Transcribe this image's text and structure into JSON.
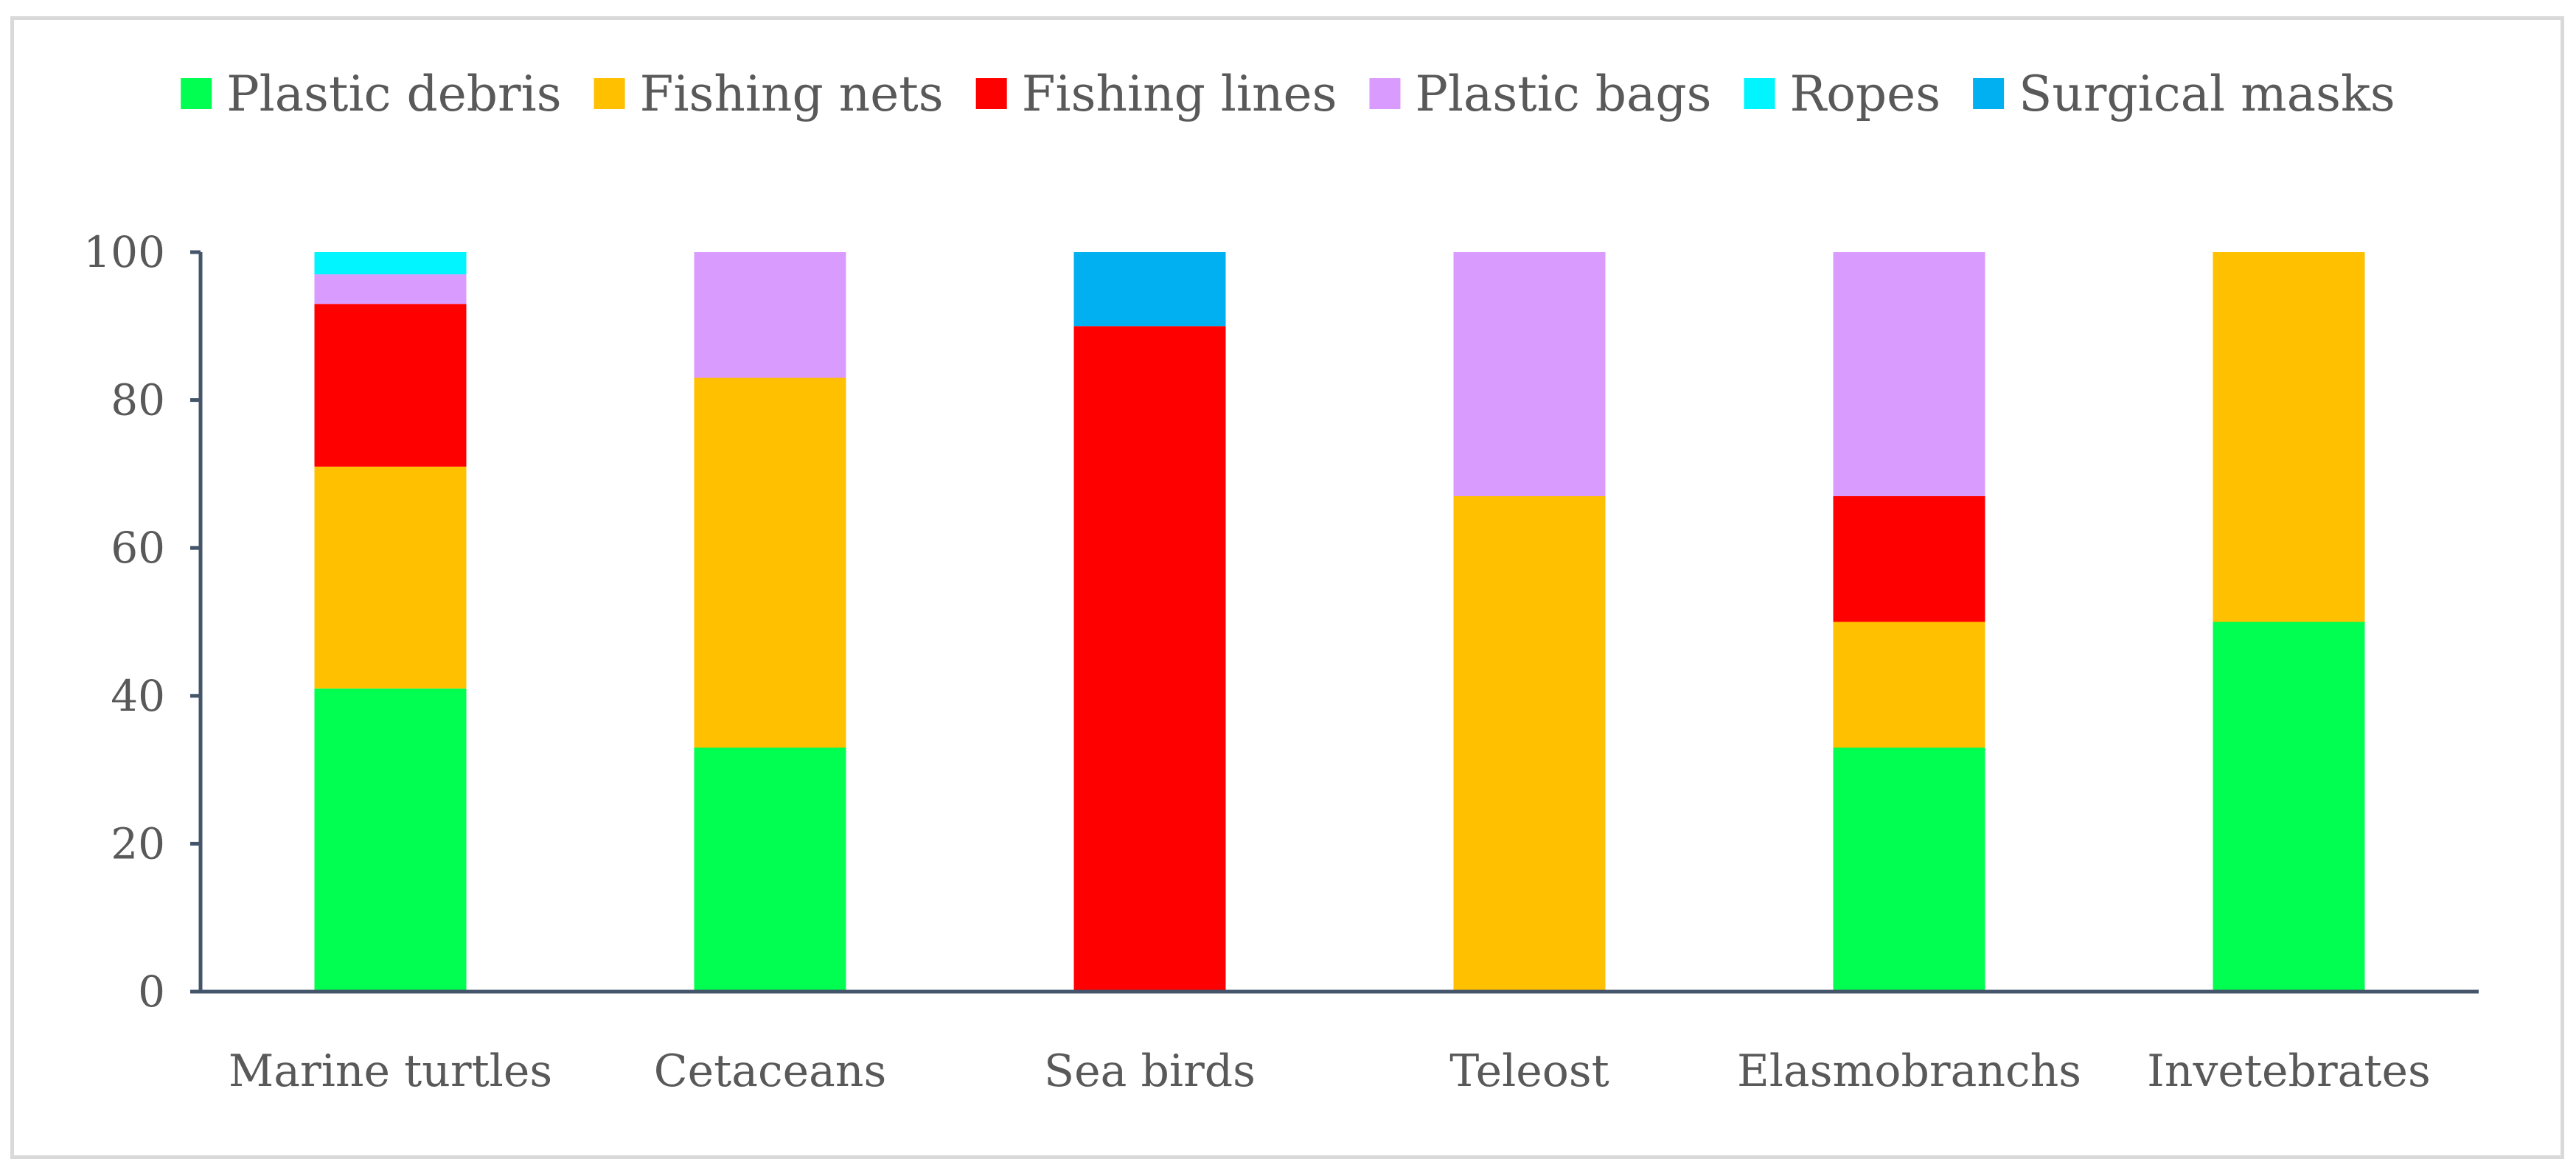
{
  "chart_data": {
    "type": "bar",
    "stacked": true,
    "categories": [
      "Marine turtles",
      "Cetaceans",
      "Sea birds",
      "Teleost",
      "Elasmobranchs",
      "Invetebrates"
    ],
    "series": [
      {
        "name": "Plastic debris",
        "color": "#00FF50",
        "values": [
          41,
          33,
          0,
          0,
          33,
          50
        ]
      },
      {
        "name": "Fishing nets",
        "color": "#FFC000",
        "values": [
          30,
          50,
          0,
          67,
          17,
          50
        ]
      },
      {
        "name": "Fishing lines",
        "color": "#FF0000",
        "values": [
          22,
          0,
          90,
          0,
          17,
          0
        ]
      },
      {
        "name": "Plastic bags",
        "color": "#DA9BFF",
        "values": [
          4,
          17,
          0,
          33,
          33,
          0
        ]
      },
      {
        "name": "Ropes",
        "color": "#00F5FF",
        "values": [
          3,
          0,
          0,
          0,
          0,
          0
        ]
      },
      {
        "name": "Surgical masks",
        "color": "#00B0F0",
        "values": [
          0,
          0,
          10,
          0,
          0,
          0
        ]
      }
    ],
    "ylim": [
      0,
      100
    ],
    "yticks": [
      0,
      20,
      40,
      60,
      80,
      100
    ],
    "xlabel": "",
    "ylabel": "",
    "grid": false,
    "legend": "top-center"
  }
}
